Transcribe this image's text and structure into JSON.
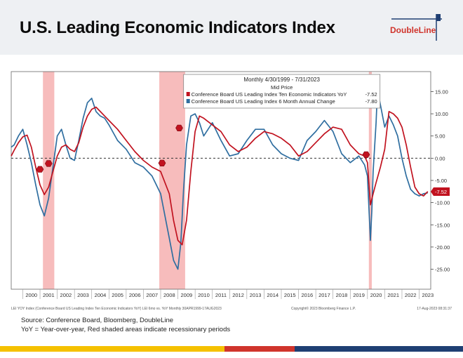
{
  "header": {
    "title": "U.S. Leading Economic Indicators Index",
    "logo_text": "DoubleLine"
  },
  "chart_data": {
    "type": "line",
    "legend": {
      "header_range": "Monthly 4/30/1999 - 7/31/2023",
      "header_field": "Mid Price",
      "placement": "top-center"
    },
    "xlim": [
      1999.33,
      2023.67
    ],
    "ylim": [
      -29.5,
      19.5
    ],
    "x_tick_labels": [
      "2000",
      "2001",
      "2002",
      "2003",
      "2004",
      "2005",
      "2006",
      "2007",
      "2008",
      "2009",
      "2010",
      "2011",
      "2012",
      "2013",
      "2014",
      "2015",
      "2016",
      "2017",
      "2018",
      "2019",
      "2020",
      "2021",
      "2022",
      "2023"
    ],
    "y_ticks": [
      15,
      10,
      5,
      0,
      -5,
      -10,
      -15,
      -20,
      -25
    ],
    "y_tick_labels": [
      "15.00",
      "10.00",
      "5.00",
      "0.00",
      "-5.00",
      "-10.00",
      "-15.00",
      "-20.00",
      "-25.00"
    ],
    "grid": false,
    "zero_line": "dashed",
    "recessions": [
      [
        2001.17,
        2001.83
      ],
      [
        2007.92,
        2009.42
      ],
      [
        2020.08,
        2020.25
      ]
    ],
    "recession_color": "#f4a6a6",
    "series": [
      {
        "name": "Conference Board US Leading Index Ten Economic Indicators YoY",
        "last_value_label": "-7.52",
        "color": "#c1121f",
        "x": [
          1999.33,
          1999.5,
          1999.75,
          2000.0,
          2000.25,
          2000.5,
          2000.75,
          2001.0,
          2001.25,
          2001.5,
          2001.75,
          2002.0,
          2002.25,
          2002.5,
          2002.75,
          2003.0,
          2003.25,
          2003.5,
          2003.75,
          2004.0,
          2004.25,
          2004.5,
          2004.75,
          2005.0,
          2005.5,
          2006.0,
          2006.5,
          2007.0,
          2007.5,
          2008.0,
          2008.5,
          2008.75,
          2009.0,
          2009.25,
          2009.5,
          2009.75,
          2010.0,
          2010.25,
          2010.5,
          2011.0,
          2011.5,
          2012.0,
          2012.5,
          2013.0,
          2013.5,
          2014.0,
          2014.5,
          2015.0,
          2015.5,
          2016.0,
          2016.5,
          2017.0,
          2017.5,
          2018.0,
          2018.5,
          2019.0,
          2019.5,
          2019.83,
          2020.0,
          2020.17,
          2020.33,
          2020.5,
          2020.75,
          2021.0,
          2021.25,
          2021.5,
          2021.75,
          2022.0,
          2022.25,
          2022.5,
          2022.75,
          2023.0,
          2023.25,
          2023.5
        ],
        "values": [
          0.5,
          1.8,
          3.5,
          4.8,
          5.2,
          2.5,
          -2.0,
          -6.0,
          -8.2,
          -6.5,
          -3.0,
          0.5,
          2.5,
          3.0,
          2.0,
          1.5,
          3.5,
          7.0,
          9.5,
          11.0,
          11.5,
          10.5,
          9.5,
          8.5,
          6.5,
          4.0,
          1.5,
          -0.5,
          -2.0,
          -3.0,
          -8.0,
          -14.0,
          -18.5,
          -19.5,
          -14.0,
          -3.0,
          6.0,
          9.5,
          9.0,
          7.5,
          6.0,
          3.0,
          1.5,
          2.5,
          4.5,
          6.0,
          5.5,
          4.5,
          3.0,
          0.5,
          1.5,
          3.5,
          5.5,
          7.0,
          6.5,
          3.0,
          1.0,
          0.5,
          -1.0,
          -10.5,
          -8.0,
          -5.5,
          -2.0,
          2.0,
          10.5,
          10.0,
          9.0,
          7.0,
          3.0,
          -2.0,
          -6.5,
          -8.0,
          -8.5,
          -7.52
        ]
      },
      {
        "name": "Conference Board US Leading Index 6 Month Annual Change",
        "last_value_label": "-7.80",
        "color": "#2f6ea0",
        "x": [
          1999.33,
          1999.5,
          1999.75,
          2000.0,
          2000.25,
          2000.5,
          2000.75,
          2001.0,
          2001.25,
          2001.5,
          2001.75,
          2002.0,
          2002.25,
          2002.5,
          2002.75,
          2003.0,
          2003.25,
          2003.5,
          2003.75,
          2004.0,
          2004.25,
          2004.5,
          2004.75,
          2005.0,
          2005.5,
          2006.0,
          2006.5,
          2007.0,
          2007.5,
          2008.0,
          2008.5,
          2008.75,
          2009.0,
          2009.17,
          2009.33,
          2009.5,
          2009.75,
          2010.0,
          2010.25,
          2010.5,
          2011.0,
          2011.5,
          2012.0,
          2012.5,
          2013.0,
          2013.5,
          2014.0,
          2014.5,
          2015.0,
          2015.5,
          2016.0,
          2016.5,
          2017.0,
          2017.5,
          2018.0,
          2018.5,
          2019.0,
          2019.5,
          2019.83,
          2020.0,
          2020.17,
          2020.25,
          2020.33,
          2020.5,
          2020.58,
          2020.75,
          2021.0,
          2021.25,
          2021.5,
          2021.75,
          2022.0,
          2022.25,
          2022.5,
          2022.75,
          2023.0,
          2023.25,
          2023.5
        ],
        "values": [
          2.5,
          3.0,
          5.0,
          6.5,
          3.0,
          -1.0,
          -6.0,
          -10.5,
          -13.0,
          -9.0,
          -2.0,
          5.0,
          6.5,
          3.0,
          0.0,
          -0.5,
          4.0,
          9.0,
          12.5,
          13.5,
          10.5,
          9.5,
          9.0,
          7.5,
          4.0,
          2.0,
          -1.0,
          -2.0,
          -4.0,
          -8.0,
          -18.0,
          -23.0,
          -25.0,
          -19.0,
          -7.0,
          3.0,
          9.5,
          10.0,
          8.0,
          5.0,
          8.0,
          4.0,
          0.5,
          1.0,
          4.0,
          6.5,
          6.5,
          3.0,
          1.0,
          0.0,
          -0.5,
          4.0,
          6.0,
          8.5,
          6.0,
          1.0,
          -1.0,
          0.5,
          -1.5,
          -4.0,
          -18.5,
          -12.0,
          -3.0,
          8.0,
          15.5,
          12.0,
          7.0,
          9.5,
          7.5,
          5.0,
          0.0,
          -4.0,
          -7.0,
          -8.0,
          -8.5,
          -8.0,
          -7.8
        ]
      }
    ],
    "markers": [
      {
        "x": 2001.0,
        "y": -2.5
      },
      {
        "x": 2001.5,
        "y": -1.2
      },
      {
        "x": 2008.08,
        "y": -1.1
      },
      {
        "x": 2009.08,
        "y": 6.8
      },
      {
        "x": 2019.92,
        "y": 0.8
      }
    ],
    "footnote_left": "LEI YOY Index (Conference Board US Leading Index Ten Economic Indicators YoY) LEI 6mo vs. YoY  Monthly 30APR1999-17AUG2023",
    "footnote_center": "Copyright© 2023 Bloomberg Finance L.P.",
    "footnote_right": "17-Aug-2023 08:31:37"
  },
  "source_note": {
    "line1": "Source: Conference Board, Bloomberg, DoubleLine",
    "line2": "YoY = Year-over-year, Red shaded areas indicate recessionary periods"
  },
  "stripe_colors": {
    "yellow": "#f5c100",
    "red": "#d0342c",
    "navy": "#1f3f73"
  }
}
